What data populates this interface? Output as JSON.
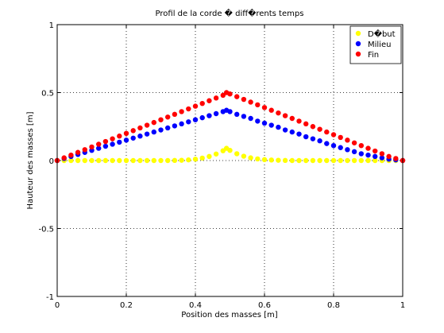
{
  "chart_data": {
    "type": "scatter",
    "title": "Profil de la corde � diff�rents temps",
    "xlabel": "Position des masses [m]",
    "ylabel": "Hauteur des masses [m]",
    "xlim": [
      0,
      1
    ],
    "ylim": [
      -1,
      1
    ],
    "xticks": [
      0,
      0.2,
      0.4,
      0.6,
      0.8,
      1
    ],
    "xtick_labels": [
      "0",
      "0.2",
      "0.4",
      "0.6",
      "0.8",
      "1"
    ],
    "yticks": [
      -1,
      -0.5,
      0,
      0.5,
      1
    ],
    "ytick_labels": [
      "-1",
      "-0.5",
      "0",
      "0.5",
      "1"
    ],
    "grid": true,
    "legend_position": "top-right",
    "series": [
      {
        "name": "D�but",
        "color": "#ffff00",
        "x": [
          0,
          0.02,
          0.04,
          0.06,
          0.08,
          0.1,
          0.12,
          0.14,
          0.16,
          0.18,
          0.2,
          0.22,
          0.24,
          0.26,
          0.28,
          0.3,
          0.32,
          0.34,
          0.36,
          0.38,
          0.4,
          0.42,
          0.44,
          0.46,
          0.48,
          0.49,
          0.5,
          0.52,
          0.54,
          0.56,
          0.58,
          0.6,
          0.62,
          0.64,
          0.66,
          0.68,
          0.7,
          0.72,
          0.74,
          0.76,
          0.78,
          0.8,
          0.82,
          0.84,
          0.86,
          0.88,
          0.9,
          0.92,
          0.94,
          0.96,
          0.98,
          1
        ],
        "y": [
          0,
          0,
          0,
          0,
          0,
          0,
          0,
          0,
          0,
          0,
          0,
          0,
          0,
          0,
          0,
          0,
          0,
          0.001,
          0.002,
          0.005,
          0.01,
          0.018,
          0.03,
          0.048,
          0.072,
          0.09,
          0.075,
          0.05,
          0.032,
          0.02,
          0.012,
          0.007,
          0.004,
          0.002,
          0.001,
          0,
          0,
          0,
          0,
          0,
          0,
          0,
          0,
          0,
          0,
          0,
          0,
          0,
          0,
          0,
          0,
          0
        ]
      },
      {
        "name": "Milieu",
        "color": "#0000ff",
        "x": [
          0,
          0.02,
          0.04,
          0.06,
          0.08,
          0.1,
          0.12,
          0.14,
          0.16,
          0.18,
          0.2,
          0.22,
          0.24,
          0.26,
          0.28,
          0.3,
          0.32,
          0.34,
          0.36,
          0.38,
          0.4,
          0.42,
          0.44,
          0.46,
          0.48,
          0.49,
          0.5,
          0.52,
          0.54,
          0.56,
          0.58,
          0.6,
          0.62,
          0.64,
          0.66,
          0.68,
          0.7,
          0.72,
          0.74,
          0.76,
          0.78,
          0.8,
          0.82,
          0.84,
          0.86,
          0.88,
          0.9,
          0.92,
          0.94,
          0.96,
          0.98,
          1
        ],
        "y": [
          0,
          0.015,
          0.03,
          0.045,
          0.06,
          0.075,
          0.09,
          0.105,
          0.12,
          0.135,
          0.15,
          0.165,
          0.18,
          0.195,
          0.21,
          0.225,
          0.24,
          0.255,
          0.27,
          0.285,
          0.3,
          0.315,
          0.33,
          0.345,
          0.36,
          0.37,
          0.36,
          0.34,
          0.325,
          0.31,
          0.29,
          0.275,
          0.26,
          0.245,
          0.225,
          0.21,
          0.195,
          0.175,
          0.16,
          0.145,
          0.125,
          0.11,
          0.095,
          0.08,
          0.065,
          0.05,
          0.04,
          0.03,
          0.02,
          0.01,
          0.005,
          0
        ]
      },
      {
        "name": "Fin",
        "color": "#ff0000",
        "x": [
          0,
          0.02,
          0.04,
          0.06,
          0.08,
          0.1,
          0.12,
          0.14,
          0.16,
          0.18,
          0.2,
          0.22,
          0.24,
          0.26,
          0.28,
          0.3,
          0.32,
          0.34,
          0.36,
          0.38,
          0.4,
          0.42,
          0.44,
          0.46,
          0.48,
          0.49,
          0.5,
          0.52,
          0.54,
          0.56,
          0.58,
          0.6,
          0.62,
          0.64,
          0.66,
          0.68,
          0.7,
          0.72,
          0.74,
          0.76,
          0.78,
          0.8,
          0.82,
          0.84,
          0.86,
          0.88,
          0.9,
          0.92,
          0.94,
          0.96,
          0.98,
          1
        ],
        "y": [
          0,
          0.02,
          0.04,
          0.06,
          0.08,
          0.1,
          0.12,
          0.14,
          0.16,
          0.18,
          0.2,
          0.22,
          0.24,
          0.26,
          0.28,
          0.3,
          0.32,
          0.34,
          0.36,
          0.38,
          0.4,
          0.42,
          0.44,
          0.46,
          0.48,
          0.5,
          0.49,
          0.47,
          0.45,
          0.43,
          0.41,
          0.39,
          0.37,
          0.35,
          0.33,
          0.31,
          0.29,
          0.27,
          0.25,
          0.23,
          0.21,
          0.19,
          0.17,
          0.15,
          0.13,
          0.11,
          0.09,
          0.07,
          0.05,
          0.03,
          0.015,
          0
        ]
      }
    ]
  }
}
